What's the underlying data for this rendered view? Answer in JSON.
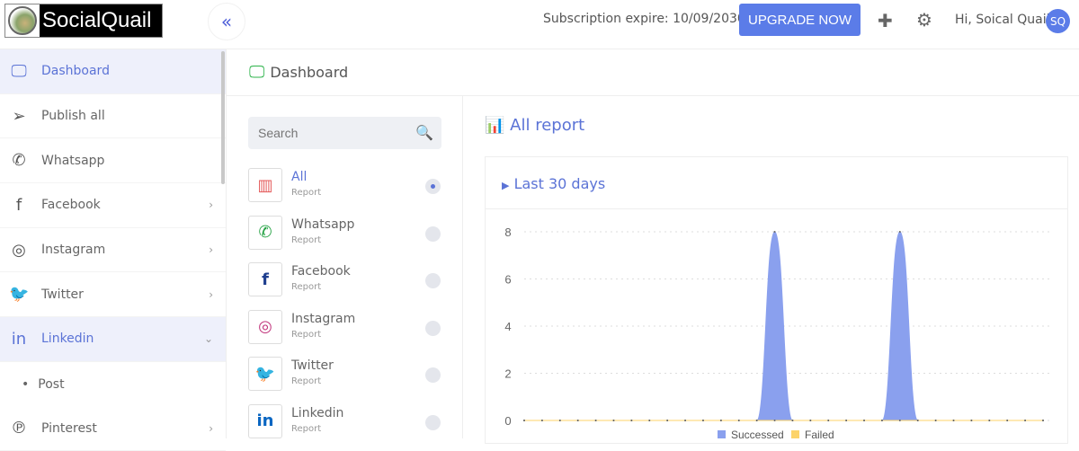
{
  "header": {
    "logo_text": "SocialQuail",
    "collapse_icon": "double-chevron-left",
    "subscription": "Subscription expire: 10/09/2030",
    "upgrade": "UPGRADE NOW",
    "greeting": "Hi, Soical Quail",
    "avatar": "SQ"
  },
  "sidebar": {
    "items": [
      {
        "label": "Dashboard",
        "icon": "monitor",
        "active": true
      },
      {
        "label": "Publish all",
        "icon": "paper-plane"
      },
      {
        "label": "Whatsapp",
        "icon": "whatsapp"
      },
      {
        "label": "Facebook",
        "icon": "facebook",
        "chevron": "right"
      },
      {
        "label": "Instagram",
        "icon": "instagram",
        "chevron": "right"
      },
      {
        "label": "Twitter",
        "icon": "twitter",
        "chevron": "right"
      },
      {
        "label": "Linkedin",
        "icon": "linkedin",
        "chevron": "down",
        "expanded": true
      },
      {
        "label": "Post",
        "sub": true
      },
      {
        "label": "Pinterest",
        "icon": "pinterest",
        "chevron": "right"
      }
    ]
  },
  "page": {
    "title": "Dashboard"
  },
  "list": {
    "search_placeholder": "Search",
    "items": [
      {
        "name": "All",
        "sub": "Report",
        "selected": true,
        "color": "#e45b5b"
      },
      {
        "name": "Whatsapp",
        "sub": "Report",
        "color": "#25a244"
      },
      {
        "name": "Facebook",
        "sub": "Report",
        "color": "#1f3f8f"
      },
      {
        "name": "Instagram",
        "sub": "Report",
        "color": "#c1357c"
      },
      {
        "name": "Twitter",
        "sub": "Report",
        "color": "#1d9bf0"
      },
      {
        "name": "Linkedin",
        "sub": "Report",
        "color": "#0a66c2"
      }
    ]
  },
  "report": {
    "title": "All report",
    "period": "Last 30 days"
  },
  "chart_data": {
    "type": "area",
    "ylim": [
      0,
      8
    ],
    "yticks": [
      "0",
      "2",
      "4",
      "6",
      "8"
    ],
    "grid": true,
    "legend": "bottom",
    "series": [
      {
        "name": "Successed",
        "color": "#8aa0ee",
        "values": [
          0,
          0,
          0,
          0,
          0,
          0,
          0,
          0,
          0,
          0,
          0,
          0,
          0,
          0,
          8,
          0,
          0,
          0,
          0,
          0,
          0,
          8,
          0,
          0,
          0,
          0,
          0,
          0,
          0,
          0
        ]
      },
      {
        "name": "Failed",
        "color": "#fcd36a",
        "values": [
          0,
          0,
          0,
          0,
          0,
          0,
          0,
          0,
          0,
          0,
          0,
          0,
          0,
          0,
          0,
          0,
          0,
          0,
          0,
          0,
          0,
          0,
          0,
          0,
          0,
          0,
          0,
          0,
          0,
          0
        ]
      }
    ]
  }
}
